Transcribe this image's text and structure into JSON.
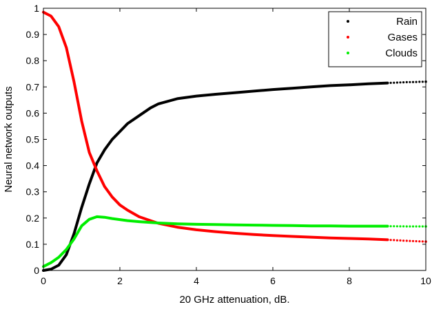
{
  "chart_data": {
    "type": "scatter",
    "xlabel": "20 GHz attenuation, dB.",
    "ylabel": "Neural network outputs",
    "xlim": [
      0,
      10
    ],
    "ylim": [
      0,
      1
    ],
    "xticks": [
      0,
      2,
      4,
      6,
      8,
      10
    ],
    "yticks": [
      0,
      0.1,
      0.2,
      0.3,
      0.4,
      0.5,
      0.6,
      0.7,
      0.8,
      0.9,
      1
    ],
    "xtick_labels": [
      "0",
      "2",
      "4",
      "6",
      "8",
      "10"
    ],
    "ytick_labels": [
      "0",
      "0.1",
      "0.2",
      "0.3",
      "0.4",
      "0.5",
      "0.6",
      "0.7",
      "0.8",
      "0.9",
      "1"
    ],
    "grid": false,
    "legend_position": "top-right",
    "x": [
      0,
      0.2,
      0.4,
      0.6,
      0.8,
      1.0,
      1.2,
      1.4,
      1.6,
      1.8,
      2.0,
      2.2,
      2.5,
      2.8,
      3.0,
      3.5,
      4.0,
      4.5,
      5.0,
      5.5,
      6.0,
      6.5,
      7.0,
      7.5,
      8.0,
      8.5,
      9.0,
      9.5,
      10.0
    ],
    "series": [
      {
        "name": "Rain",
        "color": "#000000",
        "values": [
          0.0,
          0.005,
          0.02,
          0.06,
          0.14,
          0.24,
          0.33,
          0.41,
          0.46,
          0.5,
          0.53,
          0.56,
          0.59,
          0.62,
          0.635,
          0.655,
          0.665,
          0.672,
          0.678,
          0.684,
          0.69,
          0.695,
          0.7,
          0.705,
          0.708,
          0.712,
          0.715,
          0.718,
          0.72
        ]
      },
      {
        "name": "Gases",
        "color": "#ff0000",
        "values": [
          0.985,
          0.97,
          0.93,
          0.85,
          0.72,
          0.57,
          0.45,
          0.38,
          0.32,
          0.28,
          0.25,
          0.23,
          0.205,
          0.19,
          0.18,
          0.165,
          0.155,
          0.148,
          0.142,
          0.137,
          0.133,
          0.13,
          0.127,
          0.124,
          0.122,
          0.12,
          0.117,
          0.113,
          0.11
        ]
      },
      {
        "name": "Clouds",
        "color": "#00ee00",
        "values": [
          0.015,
          0.03,
          0.05,
          0.08,
          0.12,
          0.17,
          0.195,
          0.205,
          0.203,
          0.198,
          0.194,
          0.19,
          0.186,
          0.183,
          0.181,
          0.178,
          0.176,
          0.175,
          0.174,
          0.173,
          0.172,
          0.171,
          0.17,
          0.17,
          0.169,
          0.169,
          0.169,
          0.168,
          0.168
        ]
      }
    ]
  }
}
